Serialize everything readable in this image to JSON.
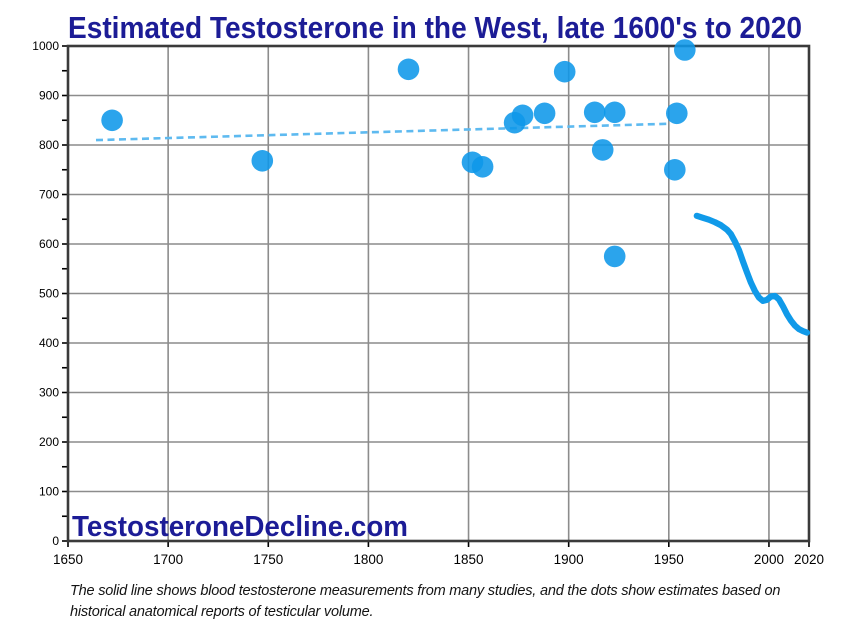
{
  "title": "Estimated Testosterone in the West, late 1600's to 2020",
  "watermark": "TestosteroneDecline.com",
  "caption": {
    "line1": "The solid line shows blood testosterone measurements from many studies, and the dots show estimates based on",
    "line2": "historical anatomical reports of testicular volume."
  },
  "colors": {
    "title_text": "#1c1c96",
    "watermark_text": "#1c1c96",
    "dot_fill": "#0e97e9",
    "solid_line": "#109ae9",
    "dashed_line": "#5ebaf0",
    "gridline": "#8c8c8c",
    "plot_border": "#3a3a3a",
    "tick": "#000000",
    "axis_label_text": "#000000"
  },
  "chart_data": {
    "type": "scatter",
    "title": "Estimated Testosterone in the West, late 1600's to 2020",
    "xlabel": "",
    "ylabel": "",
    "grid": true,
    "legend": "none",
    "x_axis": {
      "min": 1650,
      "max": 2020,
      "tick_labels": [
        1650,
        1700,
        1750,
        1800,
        1850,
        1900,
        1950,
        2000,
        2020
      ]
    },
    "y_axis": {
      "min": 0,
      "max": 1000,
      "tick_labels": [
        0,
        100,
        200,
        300,
        400,
        500,
        600,
        700,
        800,
        900,
        1000
      ],
      "minor_tick_step": 50
    },
    "series": [
      {
        "name": "anatomical-estimate-dots",
        "type": "scatter",
        "points": [
          [
            1672,
            850
          ],
          [
            1747,
            768
          ],
          [
            1820,
            953
          ],
          [
            1852,
            765
          ],
          [
            1857,
            756
          ],
          [
            1873,
            845
          ],
          [
            1877,
            860
          ],
          [
            1888,
            864
          ],
          [
            1898,
            948
          ],
          [
            1913,
            866
          ],
          [
            1917,
            790
          ],
          [
            1923,
            866
          ],
          [
            1923,
            575
          ],
          [
            1953,
            750
          ],
          [
            1954,
            864
          ],
          [
            1958,
            992
          ]
        ]
      },
      {
        "name": "dots-trend-dashed",
        "type": "line",
        "style": "dashed",
        "points": [
          [
            1664,
            810
          ],
          [
            1951,
            843
          ]
        ]
      },
      {
        "name": "blood-testosterone-solid",
        "type": "line",
        "style": "solid",
        "points": [
          [
            1964,
            657
          ],
          [
            1967,
            653
          ],
          [
            1970,
            649
          ],
          [
            1973,
            644
          ],
          [
            1976,
            638
          ],
          [
            1979,
            629
          ],
          [
            1981,
            620
          ],
          [
            1983,
            605
          ],
          [
            1985,
            588
          ],
          [
            1987,
            565
          ],
          [
            1989,
            543
          ],
          [
            1991,
            522
          ],
          [
            1993,
            505
          ],
          [
            1995,
            492
          ],
          [
            1997,
            485
          ],
          [
            1999,
            487
          ],
          [
            2001,
            494
          ],
          [
            2003,
            495
          ],
          [
            2005,
            488
          ],
          [
            2007,
            474
          ],
          [
            2009,
            458
          ],
          [
            2011,
            445
          ],
          [
            2013,
            435
          ],
          [
            2015,
            428
          ],
          [
            2017,
            424
          ],
          [
            2019,
            421
          ]
        ]
      }
    ]
  }
}
